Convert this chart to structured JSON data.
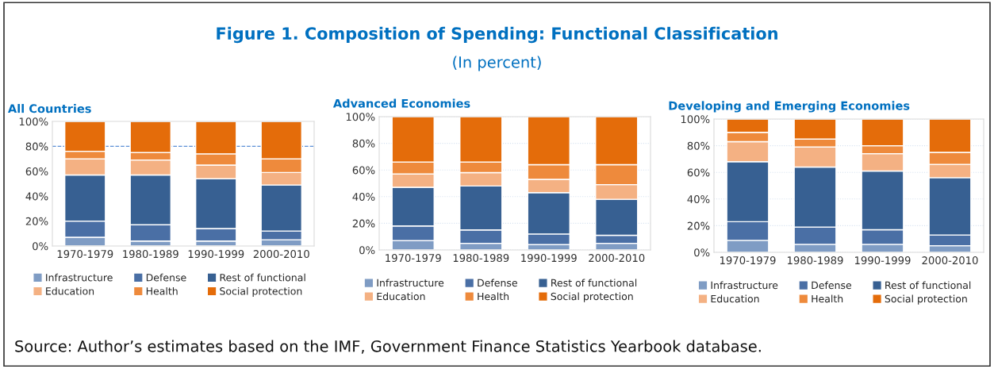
{
  "chart_data": [
    {
      "type": "bar",
      "stacked": true,
      "title": "All Countries",
      "categories": [
        "1970-1979",
        "1980-1989",
        "1990-1999",
        "2000-2010"
      ],
      "series": [
        {
          "name": "Infrastructure",
          "color": "#7f9cc4",
          "values": [
            7,
            4,
            4,
            5
          ]
        },
        {
          "name": "Defense",
          "color": "#4a6fa5",
          "values": [
            13,
            13,
            10,
            7
          ]
        },
        {
          "name": "Rest of functional",
          "color": "#376092",
          "values": [
            37,
            40,
            40,
            37
          ]
        },
        {
          "name": "Education",
          "color": "#f4b183",
          "values": [
            13,
            12,
            11,
            10
          ]
        },
        {
          "name": "Health",
          "color": "#ee8a3c",
          "values": [
            6,
            6,
            9,
            11
          ]
        },
        {
          "name": "Social protection",
          "color": "#e46c0a",
          "values": [
            24,
            25,
            26,
            30
          ]
        }
      ],
      "ylim": [
        0,
        100
      ],
      "yticks": [
        {
          "value": 0,
          "label": "0%"
        },
        {
          "value": 20,
          "label": "20%"
        },
        {
          "value": 40,
          "label": "40%"
        },
        {
          "value": 60,
          "label": "60%"
        },
        {
          "value": 80,
          "label": "80%"
        },
        {
          "value": 100,
          "label": "100%"
        }
      ],
      "ref_lines": [
        {
          "axis": "y",
          "value": 80,
          "color": "#5b8fd6",
          "line_style": "dashed"
        }
      ],
      "legend": "bottom",
      "annotations": [
        "Figure 1. Composition of Spending: Functional Classification",
        "(In percent)",
        "Source: Author’s estimates based on the IMF, Government Finance Statistics Yearbook database."
      ]
    },
    {
      "type": "bar",
      "stacked": true,
      "title": "Advanced Economies",
      "categories": [
        "1970-1979",
        "1980-1989",
        "1990-1999",
        "2000-2010"
      ],
      "series": [
        {
          "name": "Infrastructure",
          "color": "#7f9cc4",
          "values": [
            7,
            5,
            4,
            5
          ]
        },
        {
          "name": "Defense",
          "color": "#4a6fa5",
          "values": [
            11,
            10,
            8,
            6
          ]
        },
        {
          "name": "Rest of functional",
          "color": "#376092",
          "values": [
            29,
            33,
            31,
            27
          ]
        },
        {
          "name": "Education",
          "color": "#f4b183",
          "values": [
            10,
            10,
            10,
            11
          ]
        },
        {
          "name": "Health",
          "color": "#ee8a3c",
          "values": [
            9,
            8,
            11,
            15
          ]
        },
        {
          "name": "Social protection",
          "color": "#e46c0a",
          "values": [
            34,
            34,
            36,
            36
          ]
        }
      ],
      "ylim": [
        0,
        100
      ],
      "yticks": [
        {
          "value": 0,
          "label": "0%"
        },
        {
          "value": 20,
          "label": "20%"
        },
        {
          "value": 40,
          "label": "40%"
        },
        {
          "value": 60,
          "label": "60%"
        },
        {
          "value": 80,
          "label": "80%"
        },
        {
          "value": 100,
          "label": "100%"
        }
      ],
      "grid": "y",
      "legend": "bottom"
    },
    {
      "type": "bar",
      "stacked": true,
      "title": "Developing and Emerging Economies",
      "categories": [
        "1970-1979",
        "1980-1989",
        "1990-1999",
        "2000-2010"
      ],
      "series": [
        {
          "name": "Infrastructure",
          "color": "#7f9cc4",
          "values": [
            9,
            6,
            6,
            5
          ]
        },
        {
          "name": "Defense",
          "color": "#4a6fa5",
          "values": [
            14,
            13,
            11,
            8
          ]
        },
        {
          "name": "Rest of functional",
          "color": "#376092",
          "values": [
            45,
            45,
            44,
            43
          ]
        },
        {
          "name": "Education",
          "color": "#f4b183",
          "values": [
            15,
            15,
            13,
            10
          ]
        },
        {
          "name": "Health",
          "color": "#ee8a3c",
          "values": [
            7,
            6,
            6,
            9
          ]
        },
        {
          "name": "Social protection",
          "color": "#e46c0a",
          "values": [
            10,
            15,
            20,
            25
          ]
        }
      ],
      "ylim": [
        0,
        100
      ],
      "yticks": [
        {
          "value": 0,
          "label": "0%"
        },
        {
          "value": 20,
          "label": "20%"
        },
        {
          "value": 40,
          "label": "40%"
        },
        {
          "value": 60,
          "label": "60%"
        },
        {
          "value": 80,
          "label": "80%"
        },
        {
          "value": 100,
          "label": "100%"
        }
      ],
      "grid": "y",
      "legend": "bottom"
    }
  ]
}
